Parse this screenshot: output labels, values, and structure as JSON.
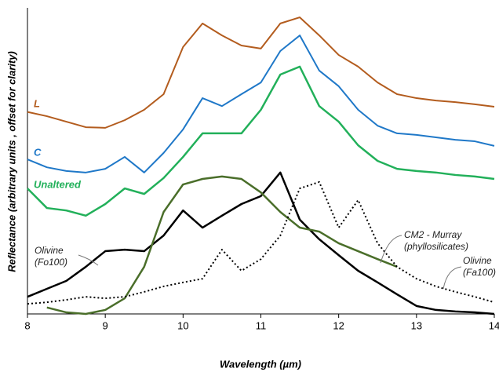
{
  "chart_data": {
    "type": "line",
    "xlabel": "Wavelength (µm)",
    "ylabel": "Reflectance (arbitrary units , offset for clarity)",
    "xlim": [
      8,
      14
    ],
    "xticks": [
      8,
      9,
      10,
      11,
      12,
      13,
      14
    ],
    "ylim": [
      0,
      100
    ],
    "x": [
      8,
      8.25,
      8.5,
      8.75,
      9,
      9.25,
      9.5,
      9.75,
      10,
      10.25,
      10.5,
      10.75,
      11,
      11.25,
      11.5,
      11.75,
      12,
      12.25,
      12.5,
      12.75,
      13,
      13.25,
      13.5,
      13.75,
      14
    ],
    "series": [
      {
        "name": "L",
        "color": "#b35c1e",
        "values": [
          66,
          64.6,
          62.8,
          61,
          60.8,
          63.3,
          66.7,
          71.8,
          87.2,
          94.9,
          91,
          87.7,
          86.7,
          94.9,
          96.9,
          91,
          84.6,
          80.8,
          75.6,
          71.8,
          70.5,
          69.7,
          69.2,
          68.5,
          67.7
        ]
      },
      {
        "name": "C",
        "color": "#1f78c8",
        "values": [
          50.5,
          47.9,
          46.7,
          46.2,
          47.4,
          51.3,
          46.2,
          52.6,
          60.3,
          70.5,
          67.9,
          71.8,
          75.6,
          85.9,
          91,
          79.5,
          74.4,
          66.7,
          61.5,
          59,
          58.5,
          57.7,
          56.9,
          56.4,
          54.9
        ]
      },
      {
        "name": "Unaltered",
        "color": "#22b05a",
        "values": [
          41,
          34.6,
          33.8,
          32.1,
          35.9,
          41,
          39.2,
          44.4,
          51.3,
          59,
          59,
          59,
          66.7,
          78.2,
          80.8,
          67.9,
          62.8,
          55.1,
          50,
          47.4,
          46.7,
          46.2,
          45.4,
          44.9,
          44.1
        ]
      },
      {
        "name": "Olivine (Fo100)",
        "color": "#000000",
        "values": [
          5.6,
          8.2,
          10.8,
          15.4,
          20.5,
          21,
          20.5,
          25.6,
          33.8,
          28.2,
          32.1,
          35.9,
          38.5,
          46.2,
          30.8,
          24.4,
          19.2,
          14.1,
          10.3,
          6.4,
          2.6,
          1.3,
          0.8,
          0.5,
          0
        ]
      },
      {
        "name": "CM2 - Murray (phyllosilicates)",
        "color": "#4a6e2a",
        "values": [
          null,
          2.1,
          0.5,
          0,
          1.3,
          5.1,
          15.4,
          33.3,
          42.3,
          44.1,
          44.9,
          44.1,
          39.7,
          33.3,
          28.2,
          26.9,
          23.1,
          20.5,
          17.9,
          15.4,
          null,
          null,
          null,
          null,
          null
        ]
      },
      {
        "name": "Olivine (Fa100)",
        "color": "#000000",
        "values": [
          3.3,
          3.8,
          4.6,
          5.6,
          5.1,
          5.6,
          7.2,
          9,
          10.3,
          11.5,
          21,
          14.1,
          17.9,
          25.6,
          41,
          43.1,
          28.2,
          37.2,
          23.1,
          15.4,
          11.5,
          9,
          7.2,
          5.6,
          3.8
        ]
      }
    ],
    "annotations": [
      {
        "lines": [
          "Olivine",
          "(Fo100)"
        ]
      },
      {
        "lines": [
          "CM2 - Murray",
          "(phyllosilicates)"
        ]
      },
      {
        "lines": [
          "Olivine",
          "(Fa100)"
        ]
      }
    ]
  }
}
